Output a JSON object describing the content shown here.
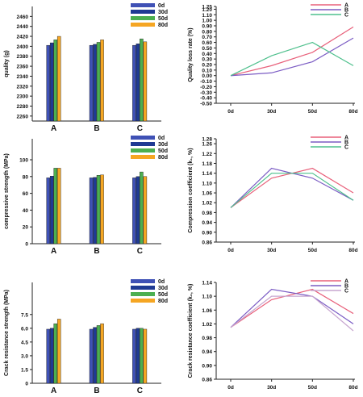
{
  "chart_data": [
    {
      "type": "bar",
      "categories": [
        "A",
        "B",
        "C"
      ],
      "series": [
        {
          "name": "0d",
          "color": "#3f51b5",
          "values": [
            2402,
            2402,
            2402
          ]
        },
        {
          "name": "30d",
          "color": "#1f3a93",
          "values": [
            2407,
            2404,
            2405
          ]
        },
        {
          "name": "50d",
          "color": "#4caf50",
          "values": [
            2413,
            2408,
            2415
          ]
        },
        {
          "name": "80d",
          "color": "#f5a623",
          "values": [
            2420,
            2413,
            2409
          ]
        }
      ],
      "ylabel": "quality (g)",
      "yticks": [
        "2260",
        "2280",
        "2300",
        "2320",
        "2340",
        "2360",
        "2380",
        "2400",
        "2420",
        "2440",
        "2460"
      ],
      "ylim": [
        2250,
        2480
      ],
      "legend": "top-right"
    },
    {
      "type": "line",
      "x": [
        "0d",
        "30d",
        "50d",
        "80d"
      ],
      "series": [
        {
          "name": "A",
          "color": "#e8607a",
          "values": [
            0.0,
            0.18,
            0.42,
            0.88
          ]
        },
        {
          "name": "B",
          "color": "#7b5cc4",
          "values": [
            0.0,
            0.05,
            0.25,
            0.68
          ]
        },
        {
          "name": "C",
          "color": "#4fc08d",
          "values": [
            0.0,
            0.36,
            0.6,
            0.18
          ]
        }
      ],
      "ylabel": "Quality loss rate (%)",
      "yticks": [
        "-0.50",
        "-0.40",
        "-0.30",
        "-0.20",
        "-0.10",
        "0.00",
        "0.10",
        "0.20",
        "0.30",
        "0.40",
        "0.50",
        "0.60",
        "0.70",
        "0.80",
        "0.90",
        "1.00",
        "1.10",
        "1.20",
        "1.25"
      ],
      "ylim": [
        -0.5,
        1.25
      ],
      "legend": "top-right"
    },
    {
      "type": "bar",
      "categories": [
        "A",
        "B",
        "C"
      ],
      "series": [
        {
          "name": "0d",
          "color": "#3f51b5",
          "values": [
            78.5,
            78.5,
            78.5
          ]
        },
        {
          "name": "30d",
          "color": "#1f3a93",
          "values": [
            80.5,
            79.0,
            80.0
          ]
        },
        {
          "name": "50d",
          "color": "#4caf50",
          "values": [
            90.0,
            81.5,
            85.5
          ]
        },
        {
          "name": "80d",
          "color": "#f5a623",
          "values": [
            90.0,
            82.0,
            80.0
          ]
        }
      ],
      "ylabel": "compressive strength (MPa)",
      "yticks": [
        "0",
        "20",
        "40",
        "60",
        "80",
        "100"
      ],
      "ylim": [
        0,
        125
      ],
      "legend": "top-right"
    },
    {
      "type": "line",
      "x": [
        "0d",
        "30d",
        "50d",
        "80d"
      ],
      "series": [
        {
          "name": "A",
          "color": "#e8607a",
          "values": [
            1.0,
            1.12,
            1.16,
            1.06
          ]
        },
        {
          "name": "B",
          "color": "#7b5cc4",
          "values": [
            1.0,
            1.16,
            1.12,
            1.03
          ]
        },
        {
          "name": "C",
          "color": "#4fc08d",
          "values": [
            1.0,
            1.14,
            1.14,
            1.03
          ]
        }
      ],
      "ylabel": "Compression coefficient (k₁, %)",
      "yticks": [
        "0.86",
        "0.90",
        "0.94",
        "0.98",
        "1.02",
        "1.06",
        "1.10",
        "1.14",
        "1.18",
        "1.22",
        "1.26",
        "1.28"
      ],
      "ylim": [
        0.86,
        1.28
      ],
      "legend": "top-right"
    },
    {
      "type": "bar",
      "categories": [
        "A",
        "B",
        "C"
      ],
      "series": [
        {
          "name": "0d",
          "color": "#3f51b5",
          "values": [
            5.9,
            5.9,
            5.9
          ]
        },
        {
          "name": "30d",
          "color": "#1f3a93",
          "values": [
            6.0,
            6.1,
            6.0
          ]
        },
        {
          "name": "50d",
          "color": "#4caf50",
          "values": [
            6.5,
            6.3,
            6.0
          ]
        },
        {
          "name": "80d",
          "color": "#f5a623",
          "values": [
            7.0,
            6.5,
            5.9
          ]
        }
      ],
      "ylabel": "Crack resistance strength (MPa)",
      "yticks": [
        "0",
        "1.5",
        "3.0",
        "4.5",
        "6.0",
        "7.5"
      ],
      "ylim": [
        0,
        11
      ],
      "legend": "top-right"
    },
    {
      "type": "line",
      "x": [
        "0d",
        "30d",
        "50d",
        "80d"
      ],
      "series": [
        {
          "name": "A",
          "color": "#e8607a",
          "values": [
            1.01,
            1.09,
            1.12,
            1.05
          ]
        },
        {
          "name": "B",
          "color": "#7b5cc4",
          "values": [
            1.01,
            1.12,
            1.1,
            1.02
          ]
        },
        {
          "name": "C",
          "color": "#c7a6cf",
          "values": [
            1.01,
            1.1,
            1.1,
            1.0
          ]
        }
      ],
      "ylabel": "Crack resistance coefficient (k₂, %)",
      "yticks": [
        "0.86",
        "0.90",
        "0.94",
        "0.98",
        "1.02",
        "1.06",
        "1.10",
        "1.14"
      ],
      "ylim": [
        0.86,
        1.14
      ],
      "legend": "top-right"
    }
  ]
}
